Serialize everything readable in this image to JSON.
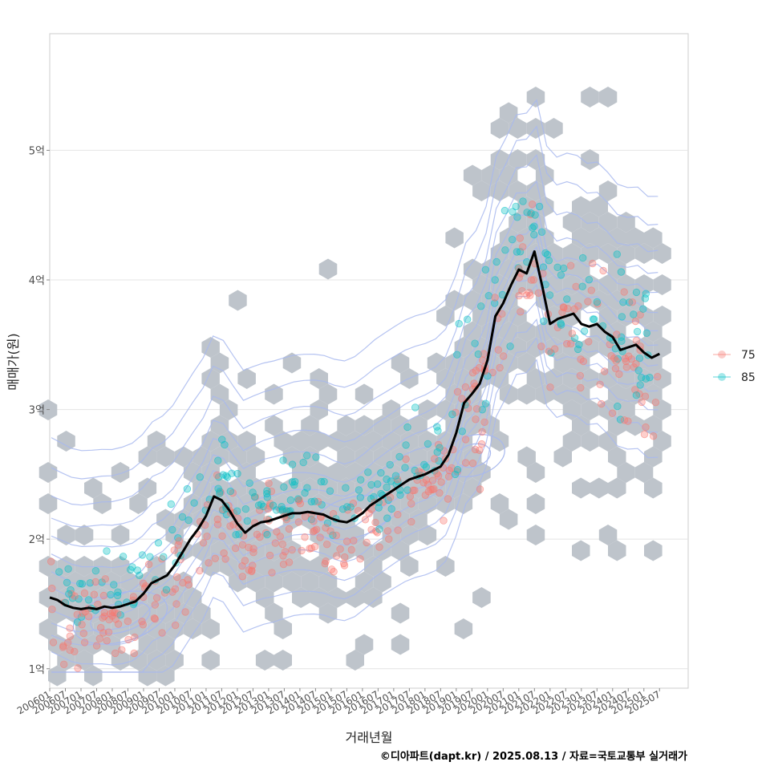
{
  "chart_data": {
    "type": "scatter",
    "xlabel": "거래년월",
    "ylabel": "매매가(원)",
    "caption": "©디아파트(dapt.kr) / 2025.08.13 / 자료=국토교통부 실거래가",
    "x_range": [
      "2006-01",
      "2026-06"
    ],
    "ylim": [
      0.85,
      5.9
    ],
    "y_ticks": [
      {
        "value": 1,
        "label": "1억"
      },
      {
        "value": 2,
        "label": "2억"
      },
      {
        "value": 3,
        "label": "3억"
      },
      {
        "value": 4,
        "label": "4억"
      },
      {
        "value": 5,
        "label": "5억"
      }
    ],
    "x_ticks": [
      "200601",
      "200607",
      "200701",
      "200707",
      "200801",
      "200807",
      "200901",
      "200907",
      "201001",
      "201007",
      "201101",
      "201107",
      "201201",
      "201207",
      "201301",
      "201307",
      "201401",
      "201407",
      "201501",
      "201507",
      "201601",
      "201607",
      "201701",
      "201707",
      "201801",
      "201807",
      "201901",
      "201907",
      "202001",
      "202007",
      "202101",
      "202107",
      "202201",
      "202207",
      "202301",
      "202307",
      "202401",
      "202407",
      "202501",
      "202507"
    ],
    "grid": true,
    "legend": {
      "position": "right",
      "entries": [
        {
          "label": "75",
          "color": "#F8766D"
        },
        {
          "label": "85",
          "color": "#00BFC4"
        }
      ]
    },
    "hex_color": "#BEC4CB",
    "contour_color": "#A8B8EE",
    "trend_line": {
      "color": "#000000",
      "points": [
        [
          "2006-01",
          1.55
        ],
        [
          "2006-04",
          1.53
        ],
        [
          "2006-07",
          1.49
        ],
        [
          "2006-10",
          1.47
        ],
        [
          "2007-01",
          1.46
        ],
        [
          "2007-04",
          1.47
        ],
        [
          "2007-07",
          1.46
        ],
        [
          "2007-10",
          1.48
        ],
        [
          "2008-01",
          1.47
        ],
        [
          "2008-04",
          1.48
        ],
        [
          "2008-07",
          1.5
        ],
        [
          "2008-10",
          1.52
        ],
        [
          "2009-01",
          1.58
        ],
        [
          "2009-04",
          1.66
        ],
        [
          "2009-07",
          1.69
        ],
        [
          "2009-10",
          1.72
        ],
        [
          "2010-01",
          1.8
        ],
        [
          "2010-04",
          1.9
        ],
        [
          "2010-07",
          2.0
        ],
        [
          "2010-10",
          2.08
        ],
        [
          "2011-01",
          2.18
        ],
        [
          "2011-04",
          2.33
        ],
        [
          "2011-07",
          2.3
        ],
        [
          "2011-10",
          2.22
        ],
        [
          "2012-01",
          2.12
        ],
        [
          "2012-04",
          2.05
        ],
        [
          "2012-07",
          2.1
        ],
        [
          "2012-10",
          2.13
        ],
        [
          "2013-01",
          2.14
        ],
        [
          "2013-04",
          2.16
        ],
        [
          "2013-07",
          2.18
        ],
        [
          "2013-10",
          2.2
        ],
        [
          "2014-01",
          2.2
        ],
        [
          "2014-04",
          2.21
        ],
        [
          "2014-07",
          2.2
        ],
        [
          "2014-10",
          2.19
        ],
        [
          "2015-01",
          2.16
        ],
        [
          "2015-04",
          2.14
        ],
        [
          "2015-07",
          2.13
        ],
        [
          "2015-10",
          2.16
        ],
        [
          "2016-01",
          2.2
        ],
        [
          "2016-04",
          2.26
        ],
        [
          "2016-07",
          2.3
        ],
        [
          "2016-10",
          2.34
        ],
        [
          "2017-01",
          2.38
        ],
        [
          "2017-04",
          2.42
        ],
        [
          "2017-07",
          2.46
        ],
        [
          "2017-10",
          2.48
        ],
        [
          "2018-01",
          2.5
        ],
        [
          "2018-04",
          2.53
        ],
        [
          "2018-07",
          2.56
        ],
        [
          "2018-10",
          2.65
        ],
        [
          "2019-01",
          2.82
        ],
        [
          "2019-04",
          3.05
        ],
        [
          "2019-07",
          3.12
        ],
        [
          "2019-10",
          3.2
        ],
        [
          "2020-01",
          3.38
        ],
        [
          "2020-04",
          3.72
        ],
        [
          "2020-07",
          3.82
        ],
        [
          "2020-10",
          3.96
        ],
        [
          "2021-01",
          4.08
        ],
        [
          "2021-04",
          4.05
        ],
        [
          "2021-07",
          4.22
        ],
        [
          "2021-10",
          3.95
        ],
        [
          "2022-01",
          3.66
        ],
        [
          "2022-04",
          3.7
        ],
        [
          "2022-07",
          3.72
        ],
        [
          "2022-10",
          3.74
        ],
        [
          "2023-01",
          3.66
        ],
        [
          "2023-04",
          3.64
        ],
        [
          "2023-07",
          3.66
        ],
        [
          "2023-10",
          3.6
        ],
        [
          "2024-01",
          3.56
        ],
        [
          "2024-04",
          3.46
        ],
        [
          "2024-07",
          3.48
        ],
        [
          "2024-10",
          3.5
        ],
        [
          "2025-01",
          3.44
        ],
        [
          "2025-04",
          3.4
        ],
        [
          "2025-07",
          3.43
        ]
      ]
    }
  }
}
